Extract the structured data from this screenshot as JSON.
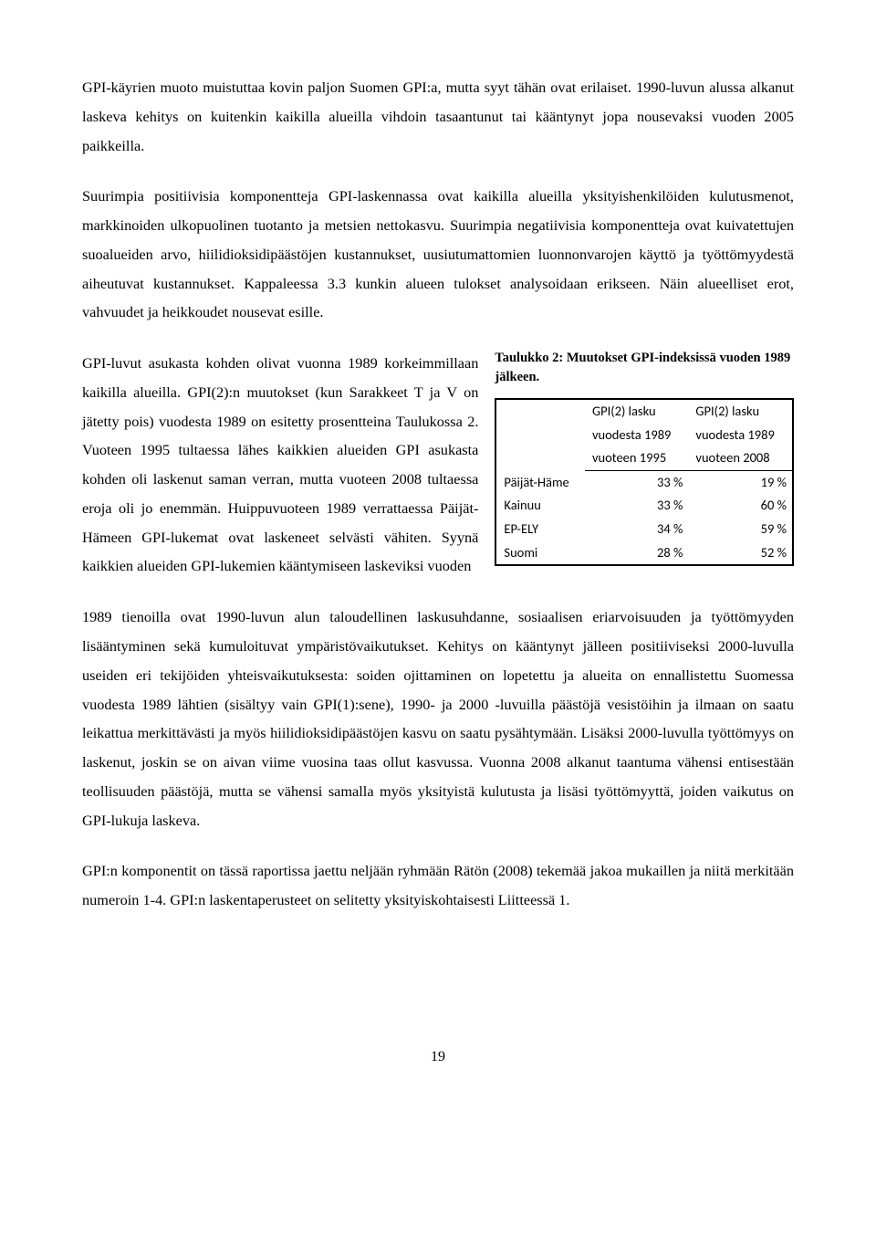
{
  "para1": "GPI-käyrien muoto muistuttaa kovin paljon Suomen GPI:a, mutta syyt tähän ovat erilaiset. 1990-luvun alussa alkanut laskeva kehitys on kuitenkin kaikilla alueilla vihdoin tasaantunut tai kääntynyt jopa nousevaksi vuoden 2005 paikkeilla.",
  "para2": "Suurimpia positiivisia komponentteja GPI-laskennassa ovat kaikilla alueilla yksityishenkilöiden kulutusmenot, markkinoiden ulkopuolinen tuotanto ja metsien nettokasvu. Suurimpia negatiivisia komponentteja ovat kuivatettujen suoalueiden arvo, hiilidioksidipäästöjen kustannukset, uusiutumattomien luonnonvarojen käyttö ja työttömyydestä aiheutuvat kustannukset. Kappaleessa 3.3 kunkin alueen tulokset analysoidaan erikseen. Näin alueelliset erot, vahvuudet ja heikkoudet nousevat esille.",
  "para3_left": "GPI-luvut asukasta kohden olivat vuonna 1989 korkeimmillaan kaikilla alueilla. GPI(2):n muutokset (kun Sarakkeet T ja V on jätetty pois) vuodesta 1989 on esitetty prosentteina Taulukossa 2. Vuoteen 1995 tultaessa lähes kaikkien alueiden GPI asukasta kohden oli laskenut saman verran, mutta vuoteen 2008 tultaessa eroja oli jo enemmän. Huippuvuoteen 1989 verrattaessa Päijät-Hämeen GPI-lukemat ovat laskeneet selvästi vähiten. Syynä kaikkien alueiden GPI-lukemien kääntymiseen laskeviksi vuoden",
  "table_caption": "Taulukko 2: Muutokset GPI-indeksissä vuoden 1989 jälkeen.",
  "table": {
    "headers": [
      "",
      "GPI(2) lasku vuodesta 1989 vuoteen 1995",
      "GPI(2) lasku vuodesta 1989 vuoteen 2008"
    ],
    "h1_l1": "GPI(2) lasku",
    "h1_l2": "vuodesta 1989",
    "h1_l3": "vuoteen 1995",
    "h2_l1": "GPI(2) lasku",
    "h2_l2": "vuodesta 1989",
    "h2_l3": "vuoteen 2008",
    "rows": [
      {
        "region": "Päijät-Häme",
        "c1": "33 %",
        "c2": "19 %"
      },
      {
        "region": "Kainuu",
        "c1": "33 %",
        "c2": "60 %"
      },
      {
        "region": "EP-ELY",
        "c1": "34 %",
        "c2": "59 %"
      },
      {
        "region": "Suomi",
        "c1": "28 %",
        "c2": "52 %"
      }
    ]
  },
  "para4": "1989 tienoilla ovat 1990-luvun alun taloudellinen laskusuhdanne, sosiaalisen eriarvoisuuden ja työttömyyden lisääntyminen sekä kumuloituvat ympäristövaikutukset. Kehitys on kääntynyt jälleen positiiviseksi 2000-luvulla useiden eri tekijöiden yhteisvaikutuksesta: soiden ojittaminen on lopetettu ja alueita on ennallistettu Suomessa vuodesta 1989 lähtien (sisältyy vain GPI(1):sene), 1990- ja 2000 -luvuilla päästöjä vesistöihin ja ilmaan on saatu leikattua merkittävästi ja myös hiilidioksidipäästöjen kasvu on saatu pysähtymään. Lisäksi 2000-luvulla työttömyys on laskenut, joskin se on aivan viime vuosina taas ollut kasvussa. Vuonna 2008 alkanut taantuma vähensi entisestään teollisuuden päästöjä, mutta se vähensi samalla myös yksityistä kulutusta ja lisäsi työttömyyttä, joiden vaikutus on GPI-lukuja laskeva.",
  "para5": "GPI:n komponentit on tässä raportissa jaettu neljään ryhmään Rätön (2008) tekemää jakoa mukaillen ja niitä merkitään numeroin 1-4. GPI:n laskentaperusteet on selitetty yksityiskohtaisesti Liitteessä 1.",
  "page_number": "19"
}
